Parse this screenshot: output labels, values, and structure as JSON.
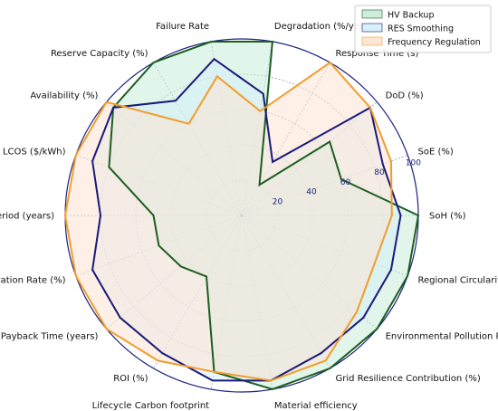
{
  "chart_data": {
    "type": "radar",
    "axes": [
      "SoH (%)",
      "SoE (%)",
      "DoD (%)",
      "Response Time (s)",
      "Degradation (%/year)",
      "Failure Rate",
      "Reserve Capacity (%)",
      "Availability (%)",
      "LCOS ($/kWh)",
      "Payback Period (years)",
      "Utilization Rate (%)",
      "Energy Payback Time (years)",
      "ROI (%)",
      "Lifecycle Carbon footprint",
      "Material efficiency",
      "Grid Resilience Contribution (%)",
      "Environmental Pollution Reduction (%)",
      "Regional Circularity Contribution (%)"
    ],
    "radial_ticks": [
      "20",
      "40",
      "60",
      "80",
      "100"
    ],
    "radial_range": [
      0,
      100
    ],
    "legend": {
      "position": "top-right"
    },
    "series": [
      {
        "name": "HV Backup",
        "fill": "#c8ecd9",
        "line": "#1b5e20",
        "values": [
          100,
          60,
          65,
          20,
          100,
          100,
          100,
          95,
          80,
          50,
          50,
          45,
          40,
          90,
          100,
          100,
          100,
          100
        ]
      },
      {
        "name": "RES Smoothing",
        "fill": "#d6eef8",
        "line": "#1a1a7a",
        "values": [
          90,
          85,
          95,
          35,
          70,
          90,
          75,
          95,
          90,
          80,
          90,
          90,
          90,
          95,
          95,
          90,
          90,
          90
        ]
      },
      {
        "name": "Frequency Regulation",
        "fill": "#fde3d3",
        "line": "#f39c2b",
        "values": [
          85,
          90,
          95,
          100,
          60,
          80,
          60,
          100,
          100,
          100,
          100,
          100,
          95,
          90,
          95,
          95,
          85,
          80
        ]
      }
    ]
  }
}
